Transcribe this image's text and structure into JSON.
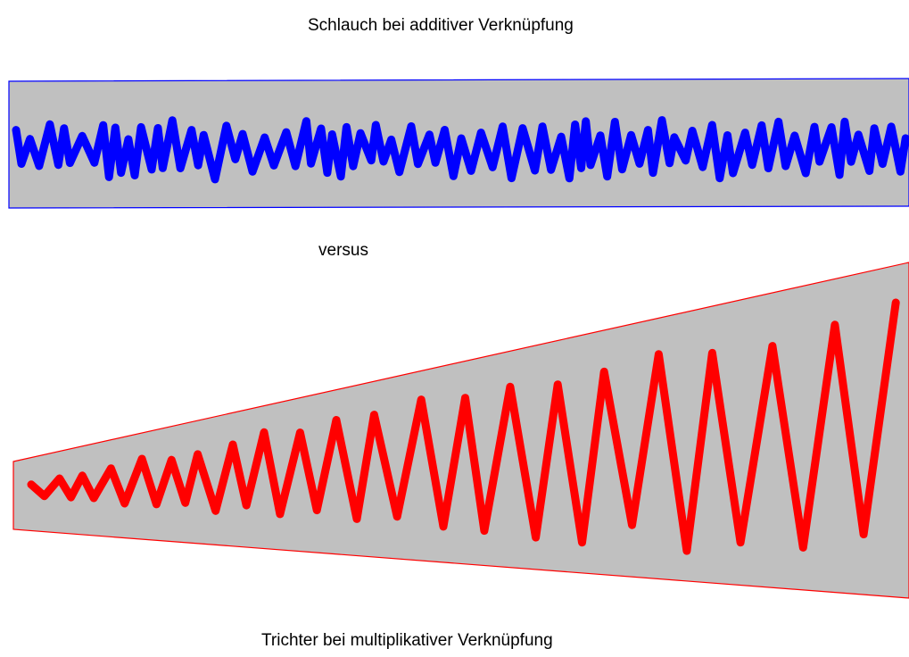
{
  "diagram": {
    "top_title": "Schlauch bei additiver Verknüpfung",
    "middle_label": "versus",
    "bottom_title": "Trichter bei multiplikativer Verknüpfung"
  },
  "colors": {
    "band_fill": "#c0c0c0",
    "additive_series": "#0000ff",
    "multiplicative_series": "#ff0000",
    "text": "#000000"
  },
  "panels": {
    "additive": {
      "band_shape": "constant-width hose",
      "series_color": "blue"
    },
    "multiplicative": {
      "band_shape": "widening funnel",
      "series_color": "red"
    }
  }
}
